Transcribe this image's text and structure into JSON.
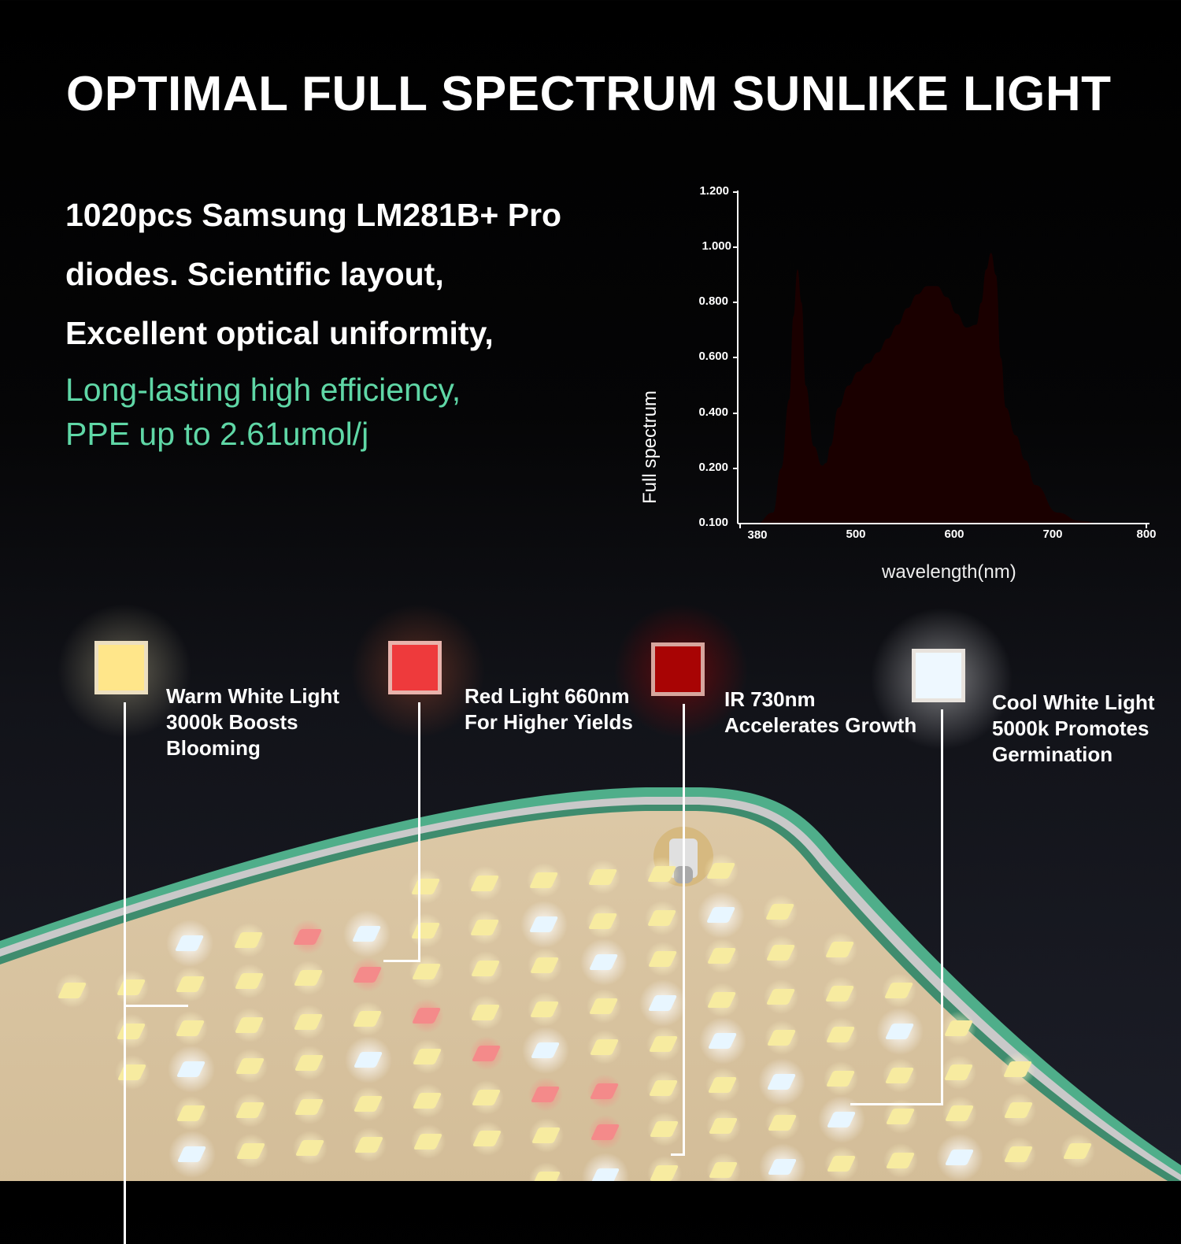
{
  "header": {
    "title": "OPTIMAL FULL SPECTRUM SUNLIKE LIGHT"
  },
  "description": {
    "lines": [
      "1020pcs Samsung LM281B+ Pro",
      "diodes. Scientific layout,",
      "Excellent optical uniformity,"
    ],
    "highlight_lines": [
      "Long-lasting high efficiency,",
      "PPE up to 2.61umol/j"
    ],
    "highlight_color": "#5fd7a6"
  },
  "chart_data": {
    "type": "area",
    "title": "",
    "xlabel": "wavelength(nm)",
    "ylabel": "Full spectrum",
    "x_ticks": [
      "380",
      "500",
      "600",
      "700",
      "800"
    ],
    "y_ticks": [
      "1.200",
      "1.000",
      "0.800",
      "0.600",
      "0.400",
      "0.200",
      "0.100"
    ],
    "ylim": [
      0.1,
      1.2
    ],
    "grid": false,
    "legend": "none",
    "fill": "visible-spectrum gradient (blue to red)",
    "series": [
      {
        "name": "Full spectrum",
        "x": [
          400,
          420,
          430,
          440,
          445,
          450,
          455,
          460,
          470,
          480,
          485,
          490,
          500,
          510,
          520,
          530,
          540,
          550,
          560,
          570,
          580,
          590,
          600,
          610,
          620,
          630,
          640,
          645,
          650,
          655,
          660,
          665,
          670,
          680,
          690,
          700,
          720,
          740,
          760,
          780
        ],
        "values": [
          0.1,
          0.12,
          0.2,
          0.45,
          0.75,
          0.92,
          0.8,
          0.5,
          0.28,
          0.21,
          0.22,
          0.28,
          0.42,
          0.5,
          0.55,
          0.58,
          0.62,
          0.67,
          0.72,
          0.78,
          0.83,
          0.86,
          0.86,
          0.82,
          0.76,
          0.71,
          0.72,
          0.8,
          0.92,
          0.98,
          0.9,
          0.6,
          0.42,
          0.32,
          0.23,
          0.17,
          0.12,
          0.105,
          0.1,
          0.1
        ]
      }
    ],
    "peaks": [
      {
        "wavelength": 450,
        "value": 0.92
      },
      {
        "wavelength": 600,
        "value": 0.86
      },
      {
        "wavelength": 655,
        "value": 0.98
      }
    ]
  },
  "legend": {
    "items": [
      {
        "line1": "Warm White Light",
        "line2": "3000k Boosts",
        "line3": "Blooming",
        "color": "#ffe68a"
      },
      {
        "line1": "Red Light 660nm",
        "line2": "For Higher Yields",
        "line3": "",
        "color": "#ee3a3c"
      },
      {
        "line1": "IR 730nm",
        "line2": "Accelerates Growth",
        "line3": "",
        "color": "#a80404"
      },
      {
        "line1": "Cool White Light",
        "line2": "5000k Promotes",
        "line3": "Germination",
        "color": "#eef8ff"
      }
    ]
  },
  "board": {
    "board_color": "#d8c3a0",
    "edge_color": "#4fae8a"
  }
}
